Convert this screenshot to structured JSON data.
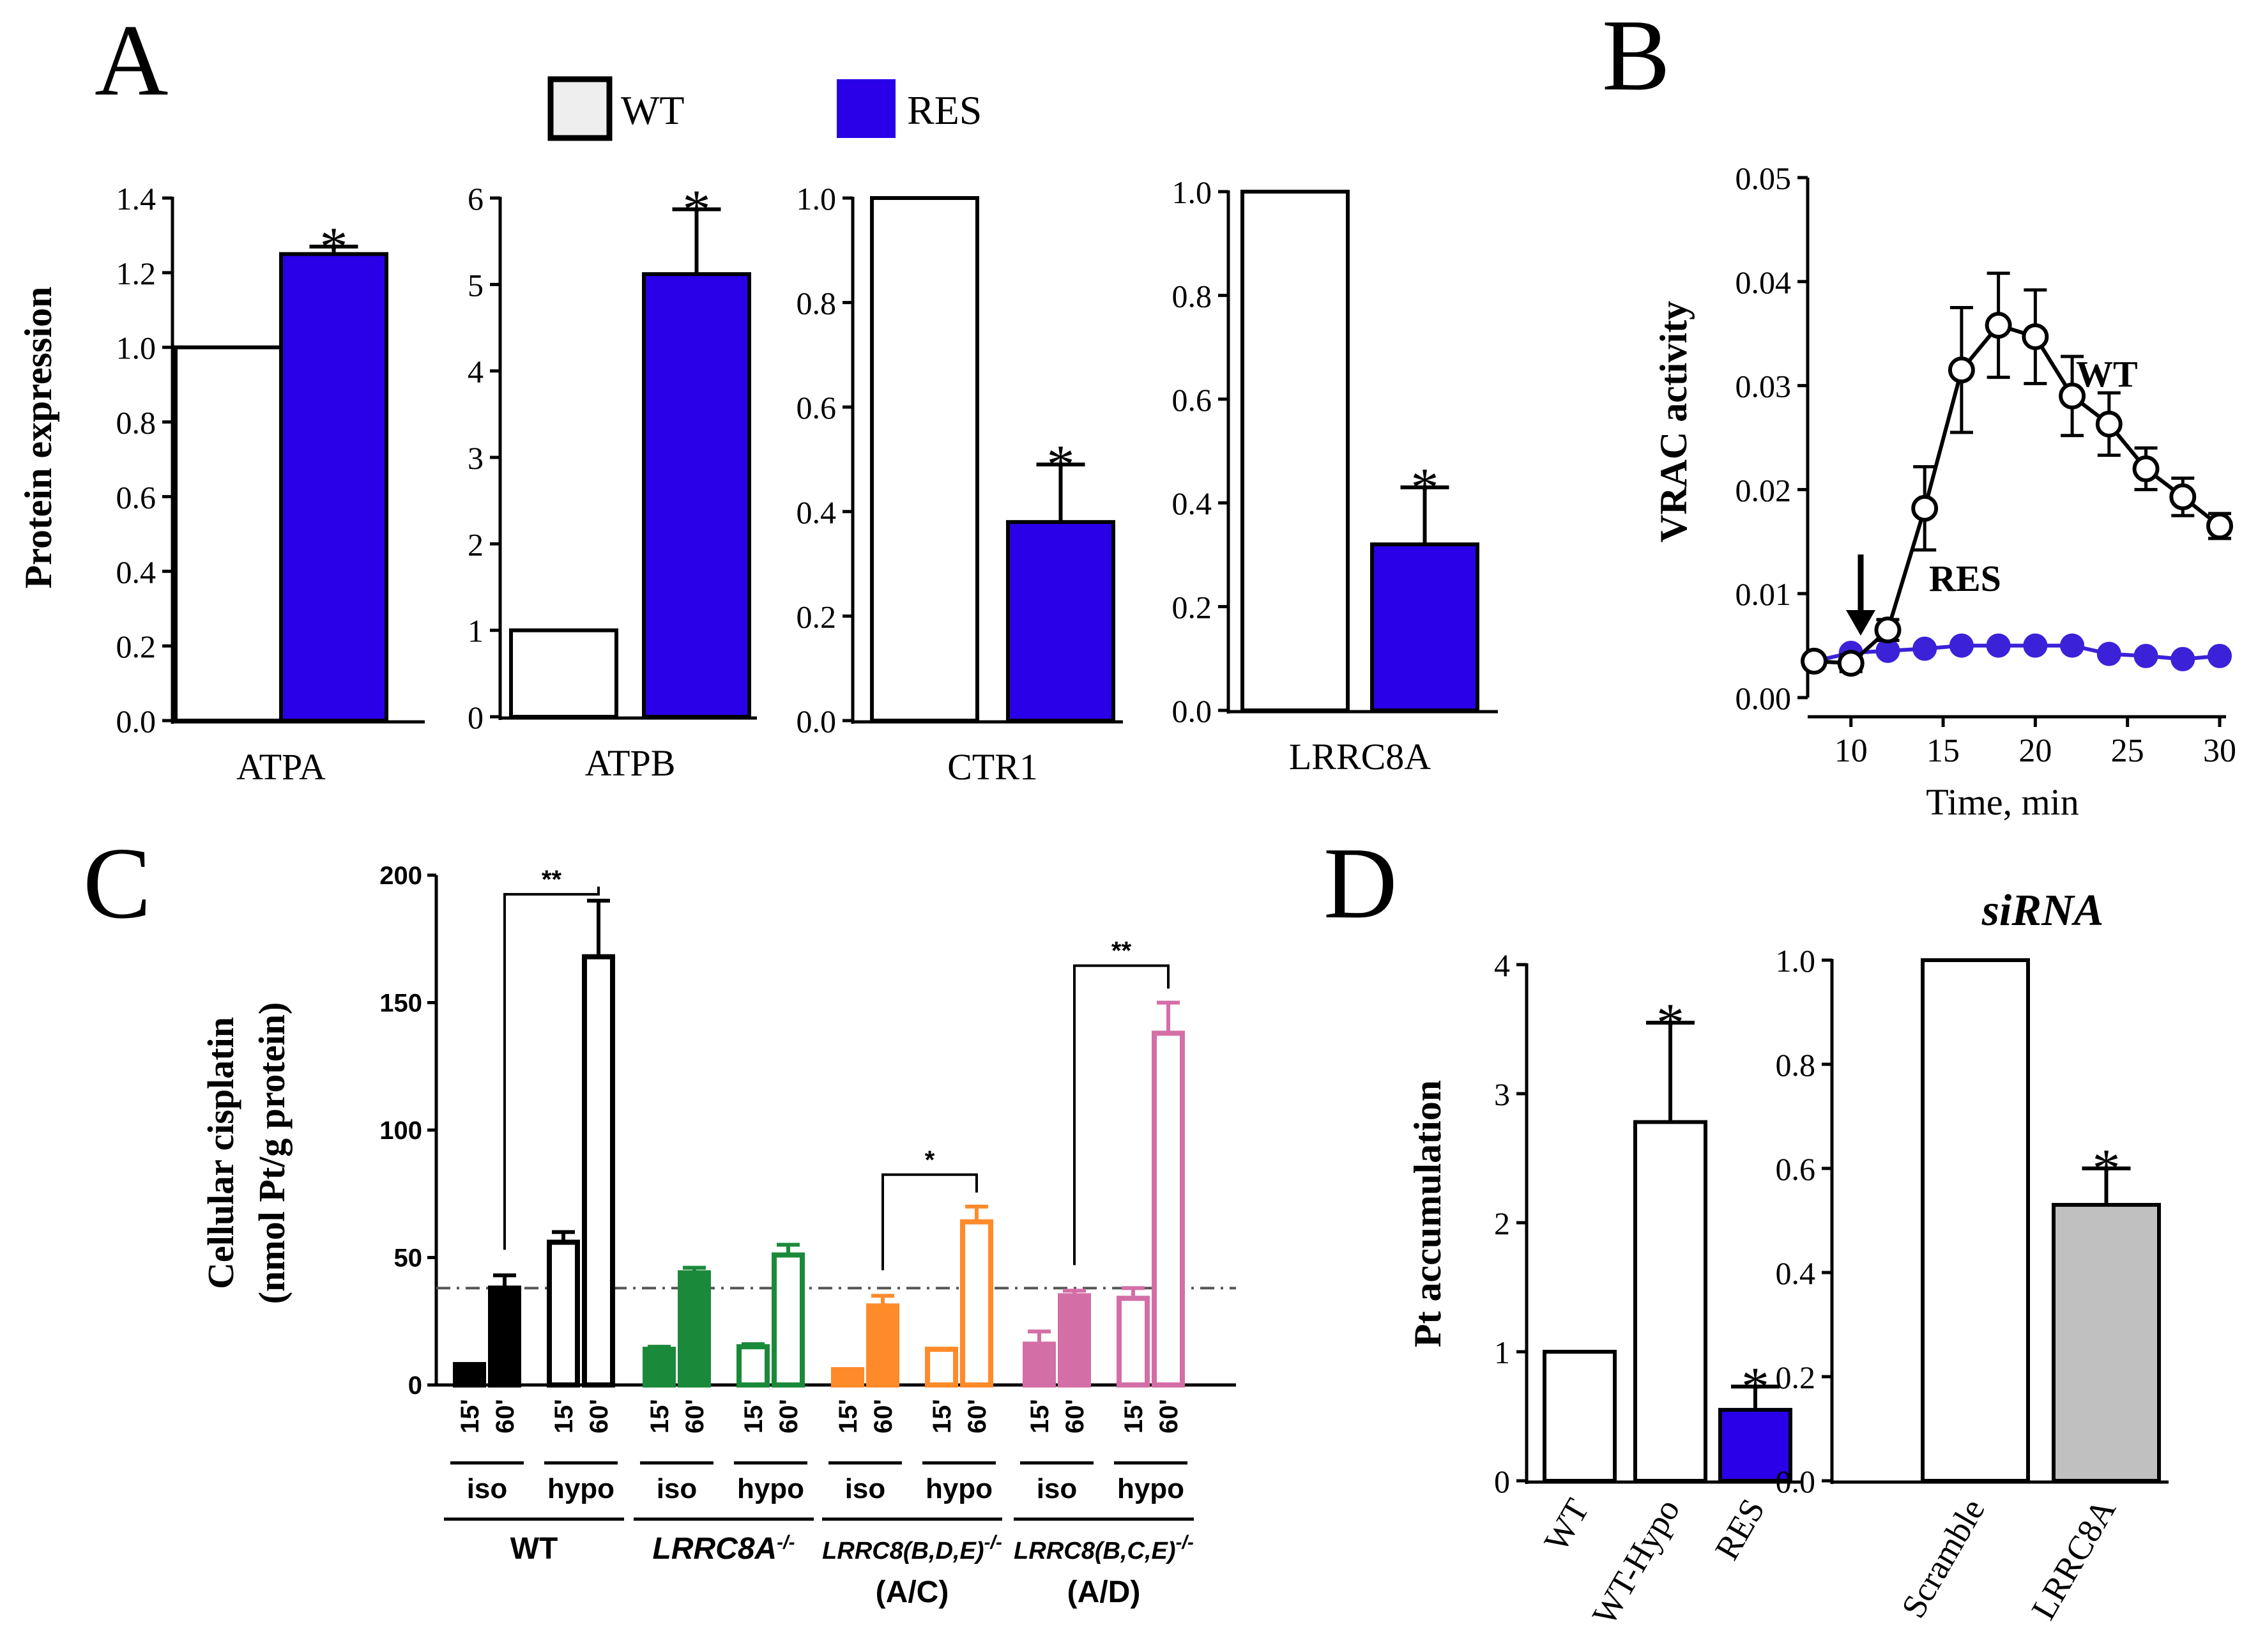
{
  "colors": {
    "wt_fill": "#ffffff",
    "res_fill": "#2a00e8",
    "res_point": "#3b22d9",
    "lrrc8a_siRNA_fill": "#c0c0c0",
    "wt_group": "#000000",
    "lrrc8a_group": "#1a8a3a",
    "bde_group": "#ff8a2a",
    "bce_group": "#d46ea6",
    "legend_wt_fill": "#eeeeee"
  },
  "panels": {
    "A": "A",
    "B": "B",
    "C": "C",
    "D": "D"
  },
  "legend": {
    "wt": "WT",
    "res": "RES"
  },
  "chart_data": [
    {
      "id": "A1",
      "type": "bar",
      "ylabel": "Protein expression",
      "xlabel": "ATPA",
      "ylim": [
        0,
        1.4
      ],
      "ticks": [
        "0.0",
        "0.2",
        "0.4",
        "0.6",
        "0.8",
        "1.0",
        "1.2",
        "1.4"
      ],
      "categories": [
        "WT",
        "RES"
      ],
      "values": [
        1.0,
        1.25
      ],
      "errors": [
        0,
        0.02
      ],
      "sig": [
        "",
        "*"
      ]
    },
    {
      "id": "A2",
      "type": "bar",
      "ylabel": "",
      "xlabel": "ATPB",
      "ylim": [
        0,
        6
      ],
      "ticks": [
        "0",
        "1",
        "2",
        "3",
        "4",
        "5",
        "6"
      ],
      "categories": [
        "WT",
        "RES"
      ],
      "values": [
        1.0,
        5.12
      ],
      "errors": [
        0,
        0.75
      ],
      "sig": [
        "",
        "*"
      ]
    },
    {
      "id": "A3",
      "type": "bar",
      "ylabel": "",
      "xlabel": "CTR1",
      "ylim": [
        0,
        1.0
      ],
      "ticks": [
        "0.0",
        "0.2",
        "0.4",
        "0.6",
        "0.8",
        "1.0"
      ],
      "categories": [
        "WT",
        "RES"
      ],
      "values": [
        1.0,
        0.38
      ],
      "errors": [
        0,
        0.11
      ],
      "sig": [
        "",
        "*"
      ]
    },
    {
      "id": "A4",
      "type": "bar",
      "ylabel": "",
      "xlabel": "LRRC8A",
      "ylim": [
        0,
        1.0
      ],
      "ticks": [
        "0.0",
        "0.2",
        "0.4",
        "0.6",
        "0.8",
        "1.0"
      ],
      "categories": [
        "WT",
        "RES"
      ],
      "values": [
        1.0,
        0.32
      ],
      "errors": [
        0,
        0.11
      ],
      "sig": [
        "",
        "*"
      ]
    },
    {
      "id": "B",
      "type": "line",
      "ylabel": "VRAC activity",
      "xlabel": "Time, min",
      "xlim": [
        8,
        30
      ],
      "ylim": [
        0,
        0.05
      ],
      "xticks": [
        "10",
        "15",
        "20",
        "25",
        "30"
      ],
      "yticks": [
        "0.00",
        "0.01",
        "0.02",
        "0.03",
        "0.04",
        "0.05"
      ],
      "series": [
        {
          "name": "WT",
          "x": [
            8,
            10,
            12,
            14,
            16,
            18,
            20,
            22,
            24,
            26,
            28,
            30
          ],
          "y": [
            0.0035,
            0.0033,
            0.0065,
            0.0182,
            0.0315,
            0.0358,
            0.0347,
            0.029,
            0.0263,
            0.022,
            0.0193,
            0.0165
          ],
          "err": [
            0.0005,
            0.0008,
            0.001,
            0.004,
            0.006,
            0.005,
            0.0045,
            0.0038,
            0.003,
            0.002,
            0.0018,
            0.0012
          ]
        },
        {
          "name": "RES",
          "x": [
            8,
            10,
            12,
            14,
            16,
            18,
            20,
            22,
            24,
            26,
            28,
            30
          ],
          "y": [
            0.0035,
            0.0043,
            0.0045,
            0.0047,
            0.005,
            0.005,
            0.005,
            0.005,
            0.0042,
            0.004,
            0.0037,
            0.004
          ],
          "err": [
            0,
            0,
            0,
            0,
            0,
            0,
            0,
            0,
            0,
            0,
            0,
            0
          ]
        }
      ],
      "annotations": [
        "WT",
        "RES"
      ]
    },
    {
      "id": "C",
      "type": "bar",
      "ylabel_line1": "Cellular cisplatin",
      "ylabel_line2": "(nmol Pt/g protein)",
      "ylim": [
        0,
        200
      ],
      "yticks": [
        "0",
        "50",
        "100",
        "150",
        "200"
      ],
      "reference_line": 38,
      "groups": [
        {
          "name": "WT",
          "sub": "",
          "colorKey": "wt_group",
          "values": [
            8,
            38,
            56,
            168
          ],
          "errors": [
            0,
            5,
            4,
            22
          ]
        },
        {
          "name": "LRRC8A",
          "sup": "-/-",
          "sub": "",
          "colorKey": "lrrc8a_group",
          "values": [
            14,
            44,
            15,
            51
          ],
          "errors": [
            1,
            2,
            1,
            4
          ]
        },
        {
          "name": "LRRC8(B,D,E)",
          "sup": "-/-",
          "sub": "(A/C)",
          "colorKey": "bde_group",
          "values": [
            6,
            31,
            14,
            64
          ],
          "errors": [
            0,
            4,
            0,
            6
          ]
        },
        {
          "name": "LRRC8(B,C,E)",
          "sup": "-/-",
          "sub": "(A/D)",
          "colorKey": "bce_group",
          "values": [
            16,
            35,
            34,
            138
          ],
          "errors": [
            5,
            2,
            4,
            12
          ]
        }
      ],
      "time_labels": [
        "15'",
        "60'"
      ],
      "condition_labels": [
        "iso",
        "hypo"
      ],
      "significance": [
        "**",
        "*",
        "**"
      ]
    },
    {
      "id": "D1",
      "type": "bar",
      "ylabel": "Pt accumulation",
      "ylim": [
        0,
        4
      ],
      "yticks": [
        "0",
        "1",
        "2",
        "3",
        "4"
      ],
      "categories": [
        "WT",
        "WT-Hypo",
        "RES"
      ],
      "values": [
        1.0,
        2.78,
        0.55
      ],
      "errors": [
        0,
        0.77,
        0.18
      ],
      "sig": [
        "",
        "*",
        "*"
      ]
    },
    {
      "id": "D2",
      "type": "bar",
      "title": "siRNA",
      "ylim": [
        0,
        1.0
      ],
      "yticks": [
        "0.0",
        "0.2",
        "0.4",
        "0.6",
        "0.8",
        "1.0"
      ],
      "categories": [
        "Scramble",
        "LRRC8A"
      ],
      "values": [
        1.0,
        0.53
      ],
      "errors": [
        0,
        0.07
      ],
      "sig": [
        "",
        "*"
      ]
    }
  ]
}
